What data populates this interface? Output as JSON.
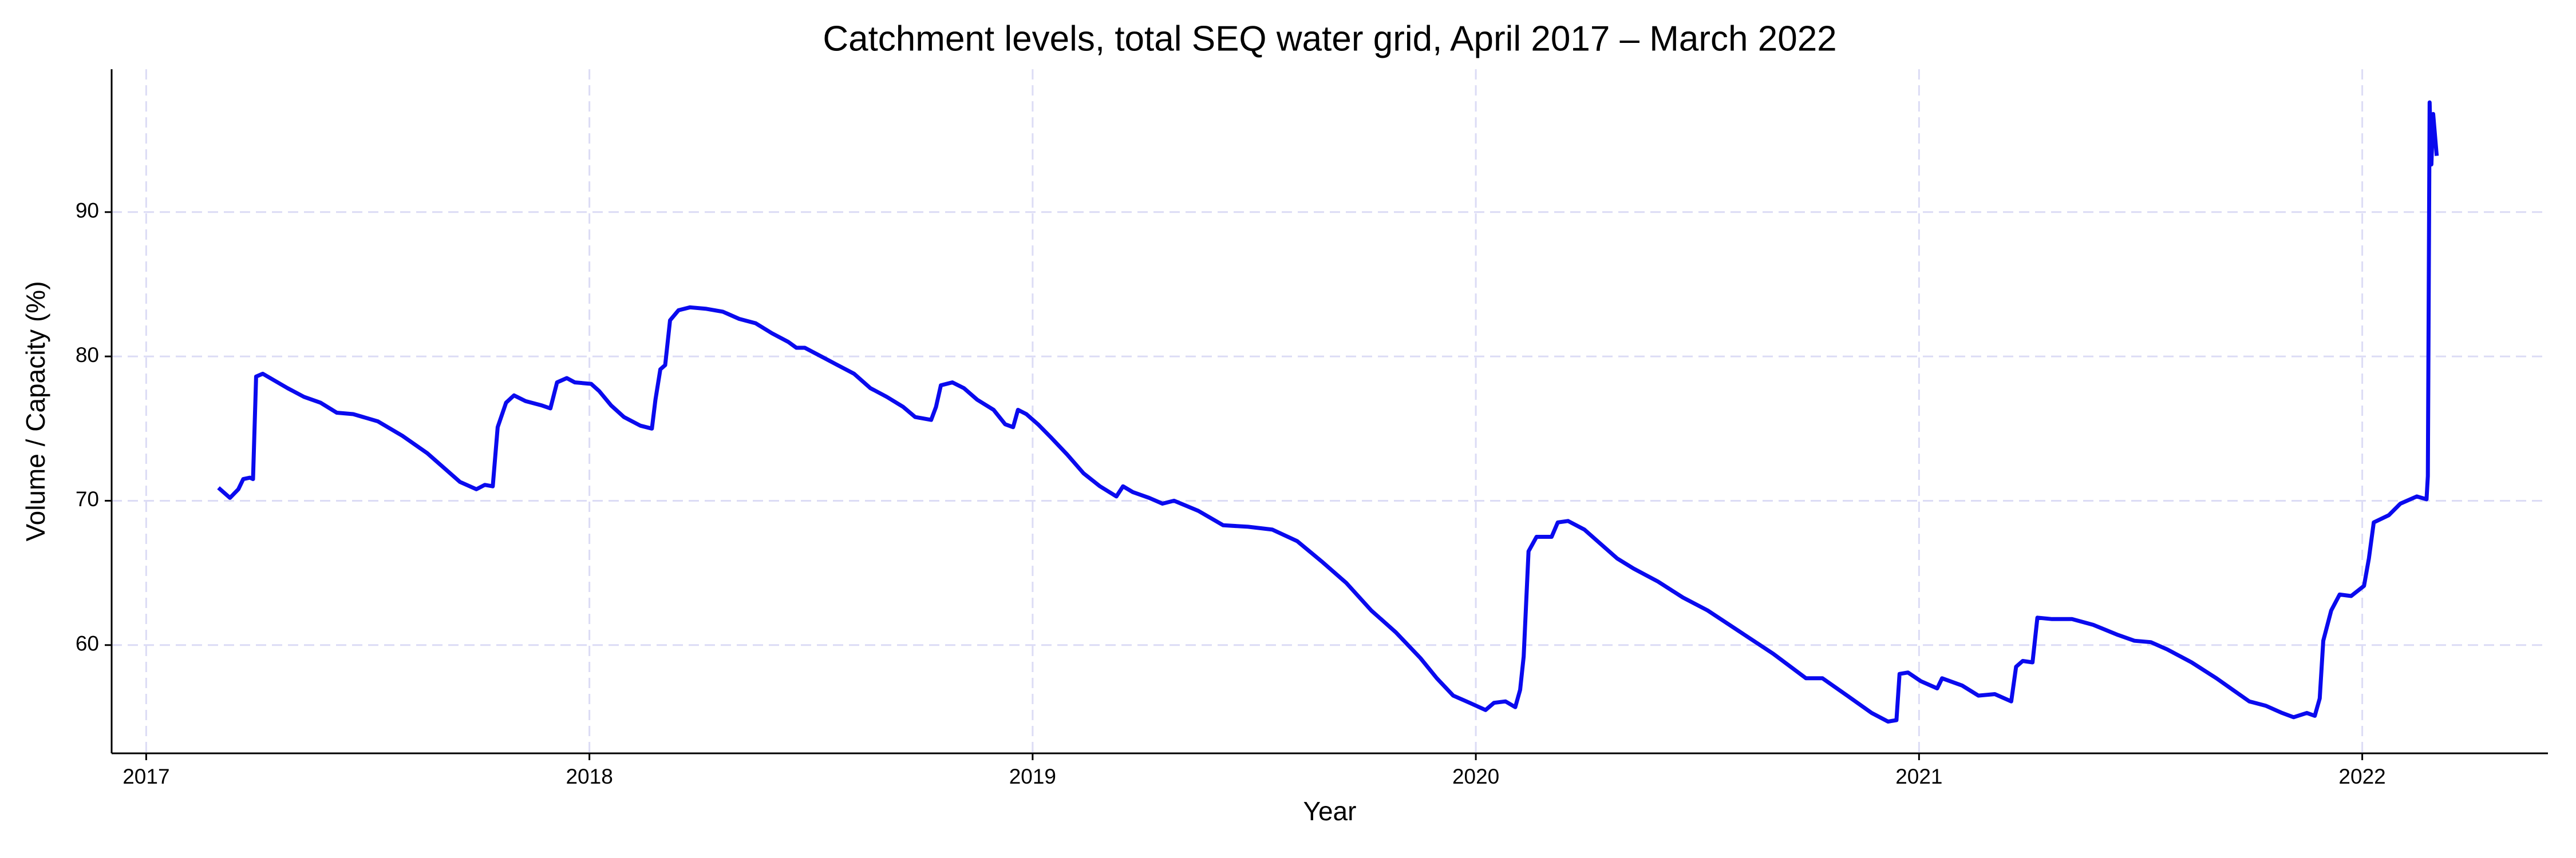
{
  "chart_data": {
    "type": "line",
    "title": "Catchment levels, total SEQ water grid, April 2017 – March 2022",
    "x_label": "Year",
    "y_label": "Volume / Capacity (%)",
    "x": [
      2017.163,
      2017.189,
      2017.208,
      2017.219,
      2017.234,
      2017.241,
      2017.248,
      2017.263,
      2017.319,
      2017.356,
      2017.393,
      2017.43,
      2017.467,
      2017.523,
      2017.578,
      2017.634,
      2017.671,
      2017.708,
      2017.745,
      2017.764,
      2017.782,
      2017.793,
      2017.812,
      2017.83,
      2017.856,
      2017.893,
      2017.912,
      2017.927,
      2017.949,
      2017.967,
      2018.004,
      2018.022,
      2018.049,
      2018.078,
      2018.115,
      2018.141,
      2018.149,
      2018.16,
      2018.171,
      2018.182,
      2018.201,
      2018.227,
      2018.264,
      2018.301,
      2018.338,
      2018.375,
      2018.412,
      2018.449,
      2018.467,
      2018.486,
      2018.523,
      2018.56,
      2018.597,
      2018.634,
      2018.671,
      2018.708,
      2018.735,
      2018.771,
      2018.782,
      2018.793,
      2018.819,
      2018.845,
      2018.875,
      2018.912,
      2018.938,
      2018.956,
      2018.967,
      2018.986,
      2019.012,
      2019.041,
      2019.078,
      2019.115,
      2019.152,
      2019.189,
      2019.204,
      2019.226,
      2019.263,
      2019.293,
      2019.319,
      2019.374,
      2019.43,
      2019.486,
      2019.541,
      2019.597,
      2019.652,
      2019.708,
      2019.764,
      2019.819,
      2019.875,
      2019.912,
      2019.949,
      2019.986,
      2020.022,
      2020.041,
      2020.067,
      2020.089,
      2020.1,
      2020.108,
      2020.119,
      2020.137,
      2020.171,
      2020.185,
      2020.208,
      2020.245,
      2020.282,
      2020.319,
      2020.356,
      2020.411,
      2020.467,
      2020.523,
      2020.597,
      2020.671,
      2020.745,
      2020.782,
      2020.838,
      2020.893,
      2020.93,
      2020.949,
      2020.956,
      2020.975,
      2021.004,
      2021.041,
      2021.052,
      2021.097,
      2021.134,
      2021.171,
      2021.208,
      2021.219,
      2021.234,
      2021.256,
      2021.267,
      2021.3,
      2021.345,
      2021.393,
      2021.449,
      2021.486,
      2021.523,
      2021.56,
      2021.615,
      2021.671,
      2021.708,
      2021.745,
      2021.782,
      2021.819,
      2021.845,
      2021.875,
      2021.893,
      2021.904,
      2021.912,
      2021.93,
      2021.949,
      2021.975,
      2022.004,
      2022.015,
      2022.026,
      2022.06,
      2022.086,
      2022.123,
      2022.145,
      2022.148,
      2022.152,
      2022.156,
      2022.16,
      2022.168
    ],
    "series": [
      {
        "color": "#0a0aee",
        "values": [
          70.9,
          70.2,
          70.8,
          71.5,
          71.6,
          71.5,
          78.6,
          78.8,
          77.8,
          77.2,
          76.8,
          76.1,
          76.0,
          75.5,
          74.5,
          73.3,
          72.3,
          71.3,
          70.8,
          71.1,
          71.0,
          75.1,
          76.8,
          77.3,
          76.9,
          76.6,
          76.4,
          78.2,
          78.5,
          78.2,
          78.1,
          77.6,
          76.6,
          75.8,
          75.2,
          75.0,
          77.0,
          79.1,
          79.4,
          82.5,
          83.2,
          83.4,
          83.3,
          83.1,
          82.6,
          82.3,
          81.6,
          81.0,
          80.6,
          80.6,
          80.0,
          79.4,
          78.8,
          77.8,
          77.2,
          76.5,
          75.8,
          75.6,
          76.5,
          78.0,
          78.2,
          77.8,
          77.0,
          76.3,
          75.3,
          75.1,
          76.3,
          76.0,
          75.3,
          74.4,
          73.2,
          71.9,
          71.0,
          70.3,
          71.0,
          70.6,
          70.2,
          69.8,
          70.0,
          69.3,
          68.3,
          68.2,
          68.0,
          67.2,
          65.8,
          64.3,
          62.4,
          60.9,
          59.1,
          57.7,
          56.5,
          56.0,
          55.5,
          56.0,
          56.1,
          55.7,
          56.9,
          59.2,
          66.5,
          67.5,
          67.5,
          68.5,
          68.6,
          68.0,
          67.0,
          66.0,
          65.3,
          64.4,
          63.3,
          62.4,
          60.9,
          59.4,
          57.7,
          57.7,
          56.5,
          55.3,
          54.7,
          54.8,
          58.0,
          58.1,
          57.5,
          57.0,
          57.7,
          57.2,
          56.5,
          56.6,
          56.1,
          58.5,
          58.9,
          58.8,
          61.9,
          61.8,
          61.8,
          61.4,
          60.7,
          60.3,
          60.2,
          59.7,
          58.8,
          57.7,
          56.9,
          56.1,
          55.8,
          55.3,
          55.0,
          55.3,
          55.1,
          56.3,
          60.3,
          62.4,
          63.5,
          63.4,
          64.1,
          66.0,
          68.5,
          69.0,
          69.8,
          70.3,
          70.1,
          71.7,
          97.6,
          93.3,
          96.8,
          93.9
        ]
      }
    ],
    "xlim": [
      2016.922,
      2022.419
    ],
    "xticks": [
      2017,
      2018,
      2019,
      2020,
      2021,
      2022
    ],
    "ylim": [
      52.5,
      99.9
    ],
    "yticks": [
      60,
      70,
      80,
      90
    ],
    "grid": true,
    "grid_color": "#dcdcf5"
  }
}
